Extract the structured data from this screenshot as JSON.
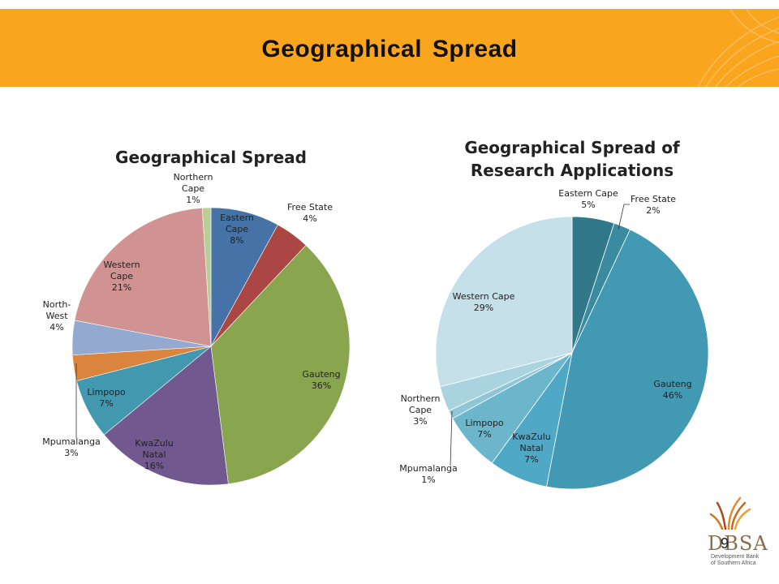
{
  "slide": {
    "title": "Geographical Spread",
    "page_number": "9",
    "logo": {
      "text": "DBSA",
      "sub_line1": "Development Bank",
      "sub_line2": "of Southern Africa"
    }
  },
  "chart_data": [
    {
      "type": "pie",
      "title": "Geographical Spread",
      "start": "top, clockwise",
      "slices": [
        {
          "label": "Eastern Cape",
          "value": 8,
          "display": "8%",
          "color": "#4572a7",
          "lines": [
            "Eastern",
            "Cape",
            "8%"
          ]
        },
        {
          "label": "Free State",
          "value": 4,
          "display": "4%",
          "color": "#aa4643",
          "lines": [
            "Free State",
            "4%"
          ]
        },
        {
          "label": "Gauteng",
          "value": 36,
          "display": "36%",
          "color": "#89a54e",
          "lines": [
            "Gauteng",
            "36%"
          ]
        },
        {
          "label": "KwaZulu Natal",
          "value": 16,
          "display": "16%",
          "color": "#71588f",
          "lines": [
            "KwaZulu",
            "Natal",
            "16%"
          ]
        },
        {
          "label": "Limpopo",
          "value": 7,
          "display": "7%",
          "color": "#4198af",
          "lines": [
            "Limpopo",
            "7%"
          ]
        },
        {
          "label": "Mpumalanga",
          "value": 3,
          "display": "3%",
          "color": "#db843d",
          "lines": [
            "Mpumalanga",
            "3%"
          ]
        },
        {
          "label": "North-West",
          "value": 4,
          "display": "4%",
          "color": "#93a9d0",
          "lines": [
            "North-",
            "West",
            "4%"
          ]
        },
        {
          "label": "Western Cape",
          "value": 21,
          "display": "21%",
          "color": "#d09392",
          "lines": [
            "Western",
            "Cape",
            "21%"
          ]
        },
        {
          "label": "Northern Cape",
          "value": 1,
          "display": "1%",
          "color": "#b9cd96",
          "lines": [
            "Northern",
            "Cape",
            "1%"
          ]
        }
      ]
    },
    {
      "type": "pie",
      "title": "Geographical Spread of Research Applications",
      "start": "top, clockwise",
      "slices": [
        {
          "label": "Eastern Cape",
          "value": 5,
          "display": "5%",
          "color": "#31788a",
          "lines": [
            "Eastern Cape",
            "5%"
          ]
        },
        {
          "label": "Free State",
          "value": 2,
          "display": "2%",
          "color": "#3a8aa0",
          "lines": [
            "Free State",
            "2%"
          ]
        },
        {
          "label": "Gauteng",
          "value": 46,
          "display": "46%",
          "color": "#4299b3",
          "lines": [
            "Gauteng",
            "46%"
          ]
        },
        {
          "label": "KwaZulu Natal",
          "value": 7,
          "display": "7%",
          "color": "#4ea8c6",
          "lines": [
            "KwaZulu",
            "Natal",
            "7%"
          ]
        },
        {
          "label": "Limpopo",
          "value": 7,
          "display": "7%",
          "color": "#6cb6cc",
          "lines": [
            "Limpopo",
            "7%"
          ]
        },
        {
          "label": "Mpumalanga",
          "value": 1,
          "display": "1%",
          "color": "#8ec6d6",
          "lines": [
            "Mpumalanga",
            "1%"
          ]
        },
        {
          "label": "Northern Cape",
          "value": 3,
          "display": "3%",
          "color": "#a9d3df",
          "lines": [
            "Northern",
            "Cape",
            "3%"
          ]
        },
        {
          "label": "Western Cape",
          "value": 29,
          "display": "29%",
          "color": "#c6e0e9",
          "lines": [
            "Western Cape",
            "29%"
          ]
        }
      ]
    }
  ]
}
